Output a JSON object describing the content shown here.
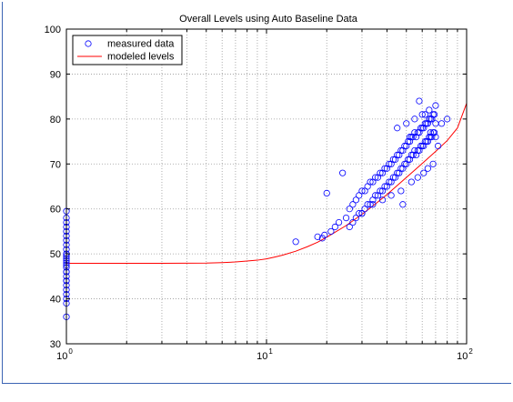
{
  "chart_data": {
    "type": "scatter",
    "title": "Overall Levels using Auto Baseline Data",
    "xlabel": "",
    "ylabel": "",
    "xscale": "log",
    "xlim": [
      1,
      100
    ],
    "ylim": [
      30,
      100
    ],
    "grid": true,
    "legend_position": "top-left",
    "x_ticks": [
      1,
      10,
      100
    ],
    "x_tick_labels": [
      {
        "base": "10",
        "exp": "0"
      },
      {
        "base": "10",
        "exp": "1"
      },
      {
        "base": "10",
        "exp": "2"
      }
    ],
    "y_ticks": [
      30,
      40,
      50,
      60,
      70,
      80,
      90,
      100
    ],
    "series": [
      {
        "name": "measured data",
        "kind": "scatter",
        "color": "#0000ff",
        "marker": "open-circle",
        "x": [
          1,
          1,
          1,
          1,
          1,
          1,
          1,
          1,
          1,
          1,
          1,
          1,
          1,
          1,
          1,
          1,
          1,
          1,
          1,
          1,
          1,
          1,
          1,
          1,
          1,
          1,
          1,
          1,
          14,
          18,
          19,
          19.5,
          20,
          21,
          22,
          23,
          24,
          25,
          26,
          26,
          27,
          27,
          28,
          28,
          29,
          29,
          30,
          30,
          31,
          31,
          32,
          32,
          33,
          33,
          34,
          34,
          35,
          35,
          36,
          36,
          37,
          37,
          38,
          38,
          39,
          39,
          40,
          40,
          41,
          41,
          42,
          42,
          43,
          43,
          44,
          44,
          45,
          45,
          46,
          46,
          47,
          47,
          48,
          48,
          49,
          49,
          50,
          50,
          51,
          51,
          52,
          52,
          53,
          53,
          54,
          54,
          55,
          55,
          56,
          56,
          57,
          57,
          58,
          58,
          59,
          59,
          60,
          60,
          61,
          61,
          62,
          62,
          63,
          63,
          64,
          64,
          65,
          65,
          66,
          66,
          67,
          67,
          68,
          68,
          69,
          69,
          70,
          70,
          45,
          50,
          55,
          60,
          65,
          70,
          75,
          80,
          52,
          58,
          62,
          66,
          72,
          38,
          42,
          47,
          53,
          57,
          61,
          64,
          68,
          30,
          34,
          48
        ],
        "y": [
          36,
          39,
          40,
          42,
          43,
          44,
          45,
          46,
          47,
          47.5,
          48,
          48.5,
          49,
          49.5,
          50,
          51,
          52,
          53,
          54,
          55,
          56,
          57,
          58,
          59.5,
          46,
          44,
          41,
          50,
          52.7,
          53.8,
          53.5,
          54.2,
          63.5,
          55,
          56,
          57,
          68,
          58,
          56,
          60,
          57,
          61,
          58,
          62,
          59,
          63,
          59,
          64,
          60,
          64,
          61,
          65,
          61,
          66,
          62,
          66,
          63,
          67,
          63,
          67,
          64,
          68,
          64,
          68,
          65,
          69,
          65,
          69,
          66,
          70,
          66,
          70,
          67,
          71,
          67,
          71,
          68,
          72,
          68,
          72,
          69,
          73,
          69,
          73,
          70,
          74,
          70,
          74,
          71,
          75,
          71,
          75,
          72,
          76,
          72,
          76,
          73,
          77,
          72,
          76,
          73,
          77,
          73,
          77,
          74,
          78,
          74,
          78,
          74,
          78,
          75,
          79,
          75,
          79,
          75,
          79,
          76,
          80,
          76,
          80,
          76,
          80,
          77,
          81,
          77,
          81,
          76,
          79,
          78,
          79,
          80,
          81,
          82,
          83,
          79,
          80,
          76,
          84,
          81,
          77,
          74,
          62,
          63,
          64,
          66,
          67,
          68,
          69,
          70,
          59,
          61,
          61
        ]
      },
      {
        "name": "modeled levels",
        "kind": "line",
        "color": "#ff0000",
        "x": [
          1,
          2,
          3,
          5,
          6,
          7,
          8,
          9,
          10,
          11,
          12,
          14,
          16,
          18,
          20,
          25,
          30,
          35,
          40,
          50,
          60,
          70,
          80,
          90,
          100
        ],
        "y": [
          47.9,
          47.9,
          47.9,
          47.95,
          48.05,
          48.2,
          48.4,
          48.6,
          48.9,
          49.3,
          49.7,
          50.6,
          51.6,
          52.6,
          53.7,
          56.3,
          58.8,
          61.1,
          63.2,
          67.0,
          70.1,
          72.8,
          75.2,
          78.0,
          83.5
        ]
      }
    ]
  }
}
